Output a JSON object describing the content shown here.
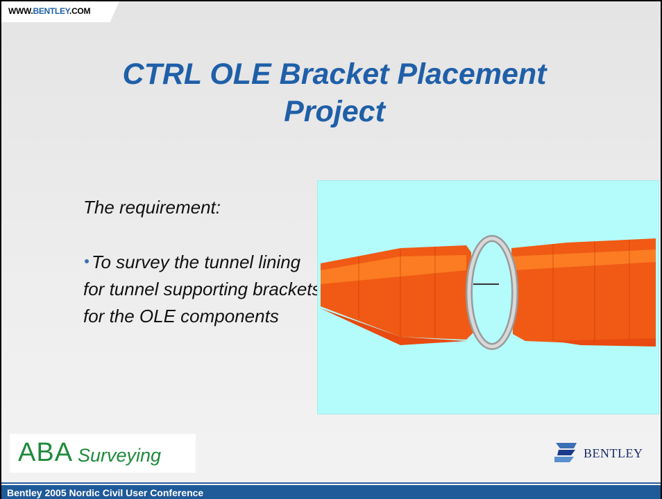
{
  "header": {
    "site_prefix": "WWW.",
    "site_brand": "BENTLEY",
    "site_suffix": ".COM"
  },
  "title": {
    "lines": [
      "CTRL OLE Bracket Placement",
      "Project"
    ]
  },
  "body": {
    "heading": "The requirement:",
    "bullets": [
      "To survey the tunnel lining for tunnel supporting brackets for the OLE components"
    ]
  },
  "logos": {
    "aba_main": "ABA",
    "aba_sub": "Surveying",
    "bentley": "BENTLEY"
  },
  "footer": {
    "text": "Bentley 2005 Nordic Civil User Conference"
  }
}
